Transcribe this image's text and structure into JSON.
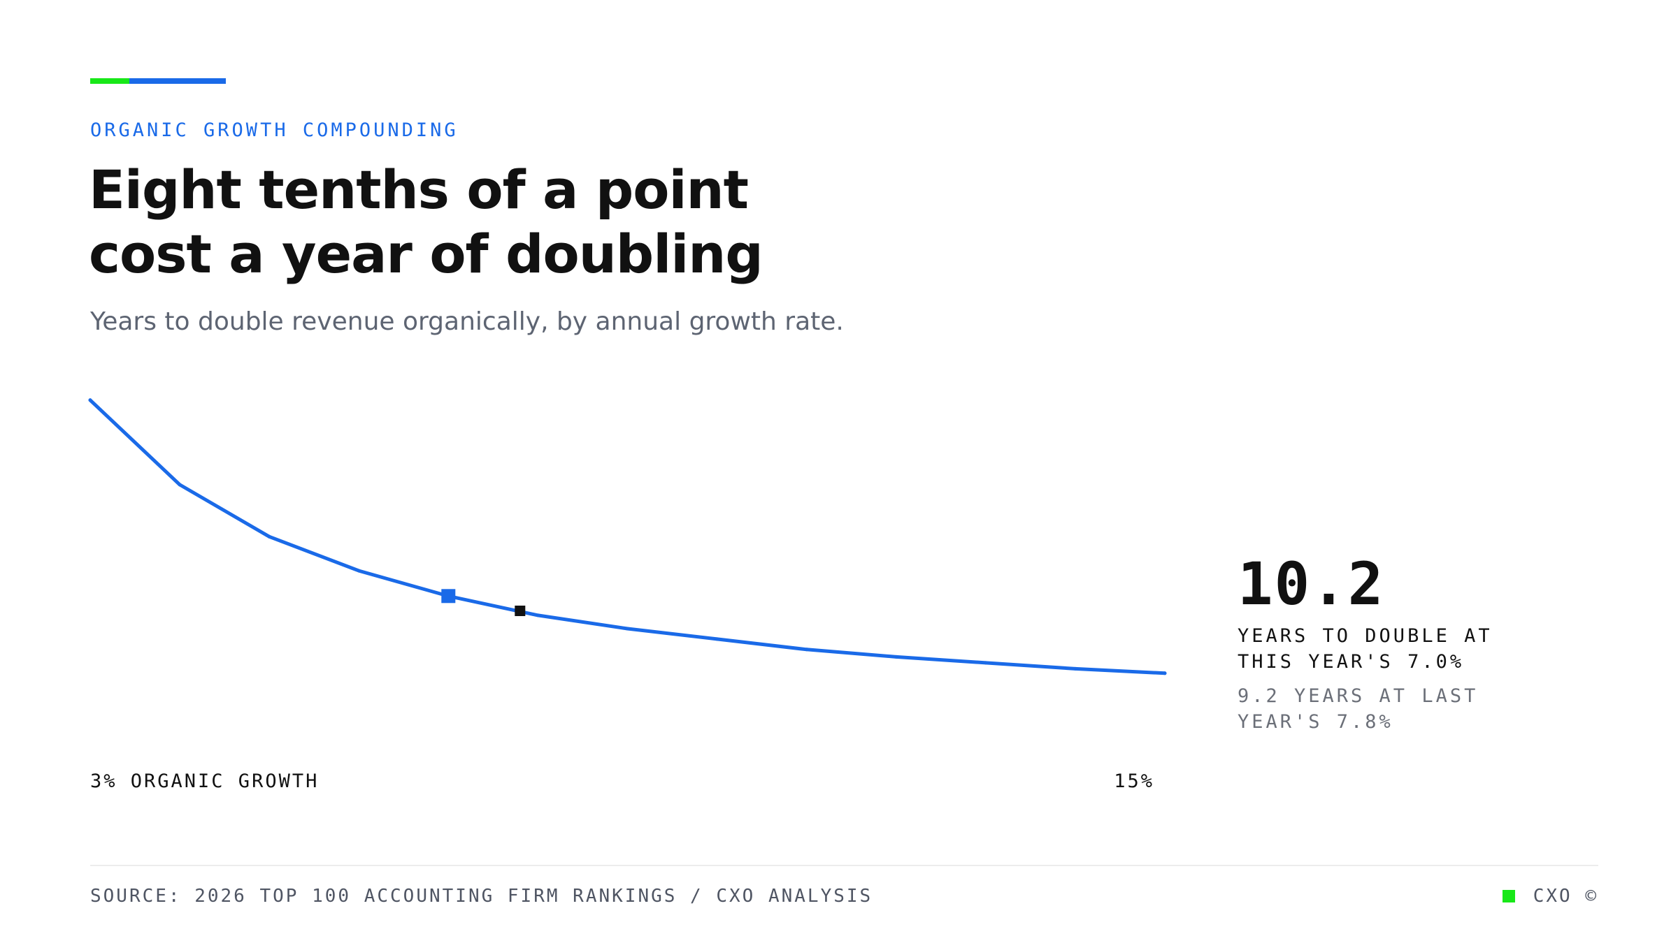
{
  "header": {
    "eyebrow": "ORGANIC GROWTH COMPOUNDING",
    "title_line1": "Eight tenths of a point",
    "title_line2": "cost a year of doubling",
    "subtitle": "Years to double revenue organically, by annual growth rate."
  },
  "colors": {
    "accent_blue": "#1a6ae8",
    "accent_green": "#18e818",
    "marker_current": "#1a6ae8",
    "marker_last_year": "#111111"
  },
  "chart_data": {
    "type": "line",
    "title": "",
    "xlabel": "",
    "ylabel": "",
    "x_unit": "% annual organic growth",
    "xlim": [
      3,
      15
    ],
    "ylim": [
      0,
      24
    ],
    "x_tick_labels": [
      "3% ORGANIC GROWTH",
      "15%"
    ],
    "grid": false,
    "series": [
      {
        "x": [
          3,
          4,
          5,
          6,
          7,
          8,
          9,
          10,
          11,
          12,
          13,
          14,
          15
        ],
        "values": [
          23.4,
          17.7,
          14.2,
          11.9,
          10.2,
          8.9,
          8.0,
          7.3,
          6.6,
          6.1,
          5.7,
          5.3,
          5.0
        ]
      }
    ],
    "highlights": [
      {
        "id": "this-year",
        "x": 7.0,
        "y": 10.2,
        "color": "#1a6ae8"
      },
      {
        "id": "last-year",
        "x": 7.8,
        "y": 9.2,
        "color": "#111111"
      }
    ]
  },
  "kpi": {
    "value": "10.2",
    "label": "YEARS TO DOUBLE AT THIS YEAR'S 7.0%",
    "comparison": "9.2 YEARS AT LAST YEAR'S 7.8%"
  },
  "footer": {
    "source": "SOURCE: 2026 TOP 100 ACCOUNTING FIRM RANKINGS / CXO ANALYSIS",
    "brand": "CXO ©"
  }
}
